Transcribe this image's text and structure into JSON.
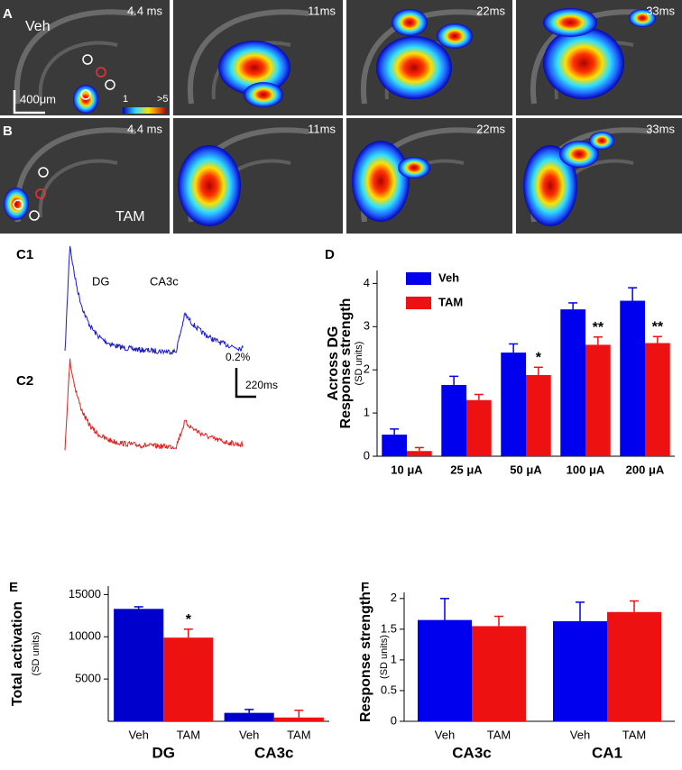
{
  "labels": [
    "A",
    "B",
    "C1",
    "C2",
    "D",
    "E",
    "F"
  ],
  "image_rows": [
    {
      "times": [
        "4.4 ms",
        "11ms",
        "22ms",
        "33ms"
      ],
      "group": "Veh"
    },
    {
      "times": [
        "4.4 ms",
        "11ms",
        "22ms",
        "33ms"
      ],
      "group": "TAM"
    }
  ],
  "scale_bar": "400μm",
  "colorbar": [
    "1",
    ">5"
  ],
  "traces": {
    "labels": [
      "DG",
      "CA3c"
    ],
    "scale": [
      "0.2%",
      "220ms"
    ]
  },
  "chart_data": [
    {
      "type": "bar",
      "ylabel": [
        "Across DG",
        "Response  strength",
        "(SD units)"
      ],
      "categories": [
        "10 μA",
        "25 μA",
        "50 μA",
        "100 μA",
        "200 μA"
      ],
      "series": [
        {
          "name": "Veh",
          "color": "#0000ee",
          "values": [
            0.5,
            1.65,
            2.4,
            3.4,
            3.6
          ],
          "errors": [
            0.13,
            0.2,
            0.2,
            0.15,
            0.3
          ]
        },
        {
          "name": "TAM",
          "color": "#ee1111",
          "values": [
            0.12,
            1.3,
            1.88,
            2.58,
            2.62
          ],
          "errors": [
            0.08,
            0.13,
            0.18,
            0.18,
            0.15
          ],
          "annotations": [
            {
              "category": "50 μA",
              "text": "*"
            },
            {
              "category": "100 μA",
              "text": "**"
            },
            {
              "category": "200 μA",
              "text": "**"
            }
          ]
        }
      ],
      "ylim": [
        0,
        4.3
      ],
      "yticks": [
        0,
        1,
        2,
        3,
        4
      ],
      "legend": "upper left"
    },
    {
      "type": "bar",
      "ylabel": [
        "Total activation",
        "(SD units)"
      ],
      "categories": [
        "DG",
        "CA3c"
      ],
      "series": [
        {
          "name": "Veh",
          "color": "#0000cc",
          "values": [
            13300,
            1000
          ],
          "errors": [
            250,
            400
          ]
        },
        {
          "name": "TAM",
          "color": "#ee1111",
          "values": [
            9900,
            450
          ],
          "errors": [
            1000,
            850
          ],
          "annotations": [
            {
              "category": "DG",
              "text": "*"
            }
          ]
        }
      ],
      "ylim": [
        0,
        16000
      ],
      "yticks": [
        5000,
        10000,
        15000
      ]
    },
    {
      "type": "bar",
      "ylabel": [
        "Response  strength",
        "(SD units)"
      ],
      "categories": [
        "CA3c",
        "CA1"
      ],
      "series": [
        {
          "name": "Veh",
          "color": "#0000ee",
          "values": [
            1.65,
            1.63
          ],
          "errors": [
            0.35,
            0.31
          ]
        },
        {
          "name": "TAM",
          "color": "#ee1111",
          "values": [
            1.55,
            1.78
          ],
          "errors": [
            0.16,
            0.18
          ]
        }
      ],
      "ylim": [
        0,
        2.1
      ],
      "yticks": [
        0,
        0.5,
        1,
        1.5,
        2
      ]
    }
  ]
}
